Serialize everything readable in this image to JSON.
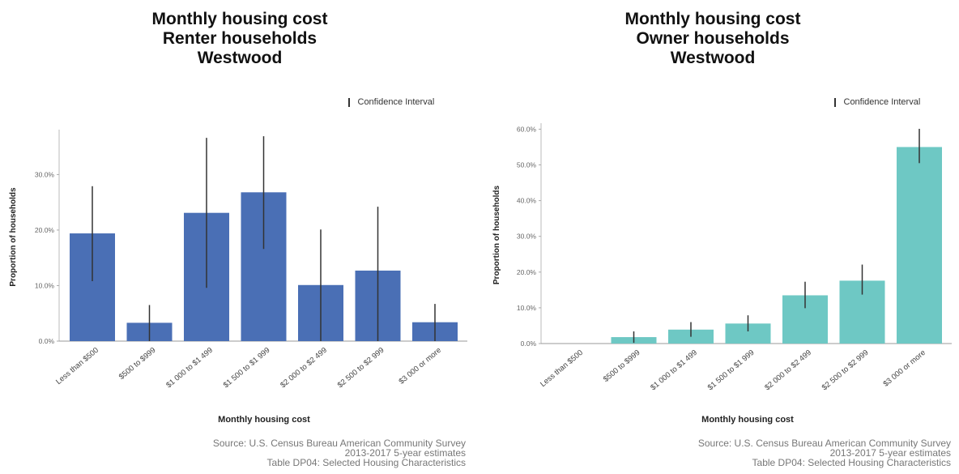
{
  "legend_label": "Confidence Interval",
  "chart_data": [
    {
      "type": "bar",
      "title": [
        "Monthly housing cost",
        "Renter households",
        "Westwood"
      ],
      "xlabel": "Monthly housing cost",
      "ylabel": "Proportion of households",
      "categories": [
        "Less than $500",
        "$500 to $999",
        "$1 000 to $1 499",
        "$1 500 to $1 999",
        "$2 000 to $2 499",
        "$2 500 to $2 999",
        "$3 000 or more"
      ],
      "values": [
        19.4,
        3.3,
        23.1,
        26.8,
        10.1,
        12.7,
        3.4
      ],
      "ci_low": [
        10.8,
        0.0,
        9.6,
        16.6,
        0.0,
        0.0,
        0.0
      ],
      "ci_high": [
        27.9,
        6.5,
        36.6,
        36.9,
        20.1,
        24.2,
        6.7
      ],
      "ylim": [
        0,
        37.5
      ],
      "yticks": [
        0,
        10,
        20,
        30
      ],
      "ytick_labels": [
        "0.0%",
        "10.0%",
        "20.0%",
        "30.0%"
      ],
      "color": "#4a6fb5",
      "source": [
        "Source: U.S. Census Bureau American Community Survey",
        "2013-2017 5-year estimates",
        "Table DP04: Selected Housing Characteristics"
      ]
    },
    {
      "type": "bar",
      "title": [
        "Monthly housing cost",
        "Owner households",
        "Westwood"
      ],
      "xlabel": "Monthly housing cost",
      "ylabel": "Proportion of households",
      "categories": [
        "Less than $500",
        "$500 to $999",
        "$1 000 to $1 499",
        "$1 500 to $1 999",
        "$2 000 to $2 499",
        "$2 500 to $2 999",
        "$3 000 or more"
      ],
      "values": [
        0.0,
        1.8,
        3.9,
        5.6,
        13.5,
        17.6,
        55.0
      ],
      "ci_low": [
        0.0,
        0.2,
        1.9,
        3.4,
        9.9,
        13.7,
        50.5
      ],
      "ci_high": [
        0.0,
        3.4,
        6.0,
        7.9,
        17.3,
        22.1,
        60.1
      ],
      "ylim": [
        0,
        61
      ],
      "yticks": [
        0,
        10,
        20,
        30,
        40,
        50,
        60
      ],
      "ytick_labels": [
        "0.0%",
        "10.0%",
        "20.0%",
        "30.0%",
        "40.0%",
        "50.0%",
        "60.0%"
      ],
      "color": "#6ec8c4",
      "source": [
        "Source: U.S. Census Bureau American Community Survey",
        "2013-2017 5-year estimates",
        "Table DP04: Selected Housing Characteristics"
      ]
    }
  ]
}
